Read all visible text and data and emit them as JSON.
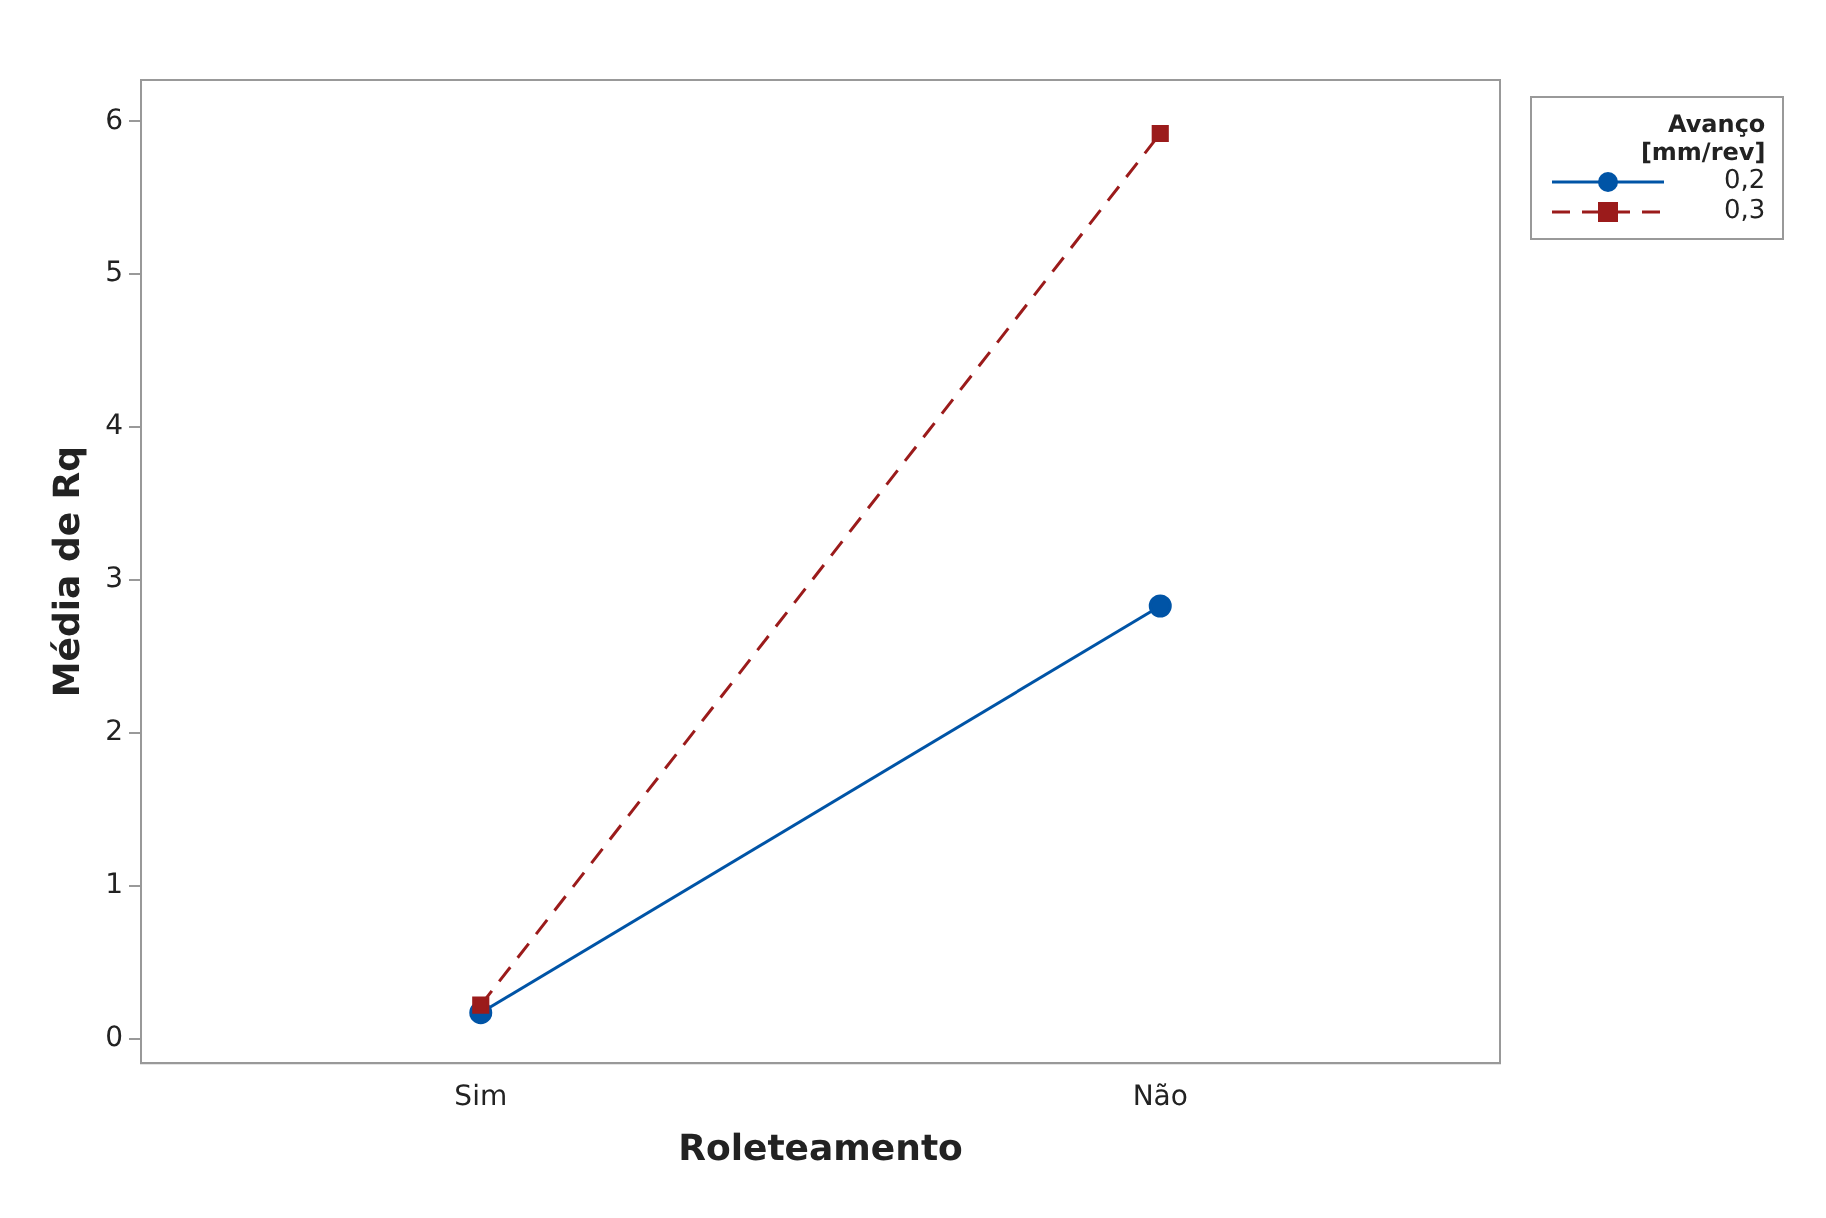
{
  "chart_data": {
    "type": "line",
    "xlabel": "Roleteamento",
    "ylabel": "Média de Rq",
    "legend_title": "Avanço\n[mm/rev]",
    "categories": [
      "Sim",
      "Não"
    ],
    "series": [
      {
        "name": "0,2",
        "color": "#0054a6",
        "values": [
          0.17,
          2.83
        ],
        "marker": "circle",
        "line_style": "solid"
      },
      {
        "name": "0,3",
        "color": "#9b1b1b",
        "values": [
          0.22,
          5.92
        ],
        "marker": "square",
        "line_style": "dashed"
      }
    ],
    "ylim": [
      -0.16,
      6.27
    ],
    "yticks": [
      0,
      1,
      2,
      3,
      4,
      5,
      6
    ],
    "grid": false,
    "legend": "top right"
  }
}
